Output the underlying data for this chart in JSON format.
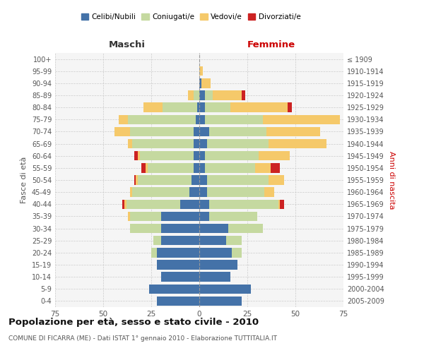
{
  "age_groups": [
    "0-4",
    "5-9",
    "10-14",
    "15-19",
    "20-24",
    "25-29",
    "30-34",
    "35-39",
    "40-44",
    "45-49",
    "50-54",
    "55-59",
    "60-64",
    "65-69",
    "70-74",
    "75-79",
    "80-84",
    "85-89",
    "90-94",
    "95-99",
    "100+"
  ],
  "birth_years": [
    "2005-2009",
    "2000-2004",
    "1995-1999",
    "1990-1994",
    "1985-1989",
    "1980-1984",
    "1975-1979",
    "1970-1974",
    "1965-1969",
    "1960-1964",
    "1955-1959",
    "1950-1954",
    "1945-1949",
    "1940-1944",
    "1935-1939",
    "1930-1934",
    "1925-1929",
    "1920-1924",
    "1915-1919",
    "1910-1914",
    "≤ 1909"
  ],
  "colors": {
    "celibi": "#4472a8",
    "coniugati": "#c5d9a0",
    "vedovi": "#f5c96a",
    "divorziati": "#cc2222"
  },
  "maschi": {
    "celibi": [
      22,
      26,
      20,
      22,
      22,
      20,
      20,
      20,
      10,
      5,
      4,
      3,
      3,
      3,
      3,
      2,
      1,
      0,
      0,
      0,
      0
    ],
    "coniugati": [
      0,
      0,
      0,
      0,
      3,
      4,
      16,
      16,
      28,
      30,
      28,
      24,
      28,
      32,
      33,
      35,
      18,
      3,
      0,
      0,
      0
    ],
    "vedovi": [
      0,
      0,
      0,
      0,
      0,
      0,
      0,
      1,
      1,
      1,
      1,
      1,
      1,
      2,
      8,
      5,
      10,
      3,
      0,
      0,
      0
    ],
    "divorziati": [
      0,
      0,
      0,
      0,
      0,
      0,
      0,
      0,
      1,
      0,
      1,
      2,
      2,
      0,
      0,
      0,
      0,
      0,
      0,
      0,
      0
    ]
  },
  "femmine": {
    "celibi": [
      22,
      27,
      16,
      20,
      17,
      14,
      15,
      5,
      5,
      4,
      4,
      3,
      3,
      4,
      5,
      3,
      3,
      3,
      1,
      0,
      0
    ],
    "coniugati": [
      0,
      0,
      0,
      0,
      5,
      8,
      18,
      25,
      36,
      30,
      32,
      26,
      28,
      32,
      30,
      30,
      13,
      4,
      0,
      0,
      0
    ],
    "vedovi": [
      0,
      0,
      0,
      0,
      0,
      0,
      0,
      0,
      1,
      5,
      8,
      8,
      16,
      30,
      28,
      40,
      30,
      15,
      5,
      2,
      0
    ],
    "divorziati": [
      0,
      0,
      0,
      0,
      0,
      0,
      0,
      0,
      2,
      0,
      0,
      5,
      0,
      0,
      0,
      0,
      2,
      2,
      0,
      0,
      0
    ]
  },
  "title": "Popolazione per età, sesso e stato civile - 2010",
  "subtitle": "COMUNE DI FICARRA (ME) - Dati ISTAT 1° gennaio 2010 - Elaborazione TUTTITALIA.IT",
  "xlabel_left": "Maschi",
  "xlabel_right": "Femmine",
  "ylabel_left": "Fasce di età",
  "ylabel_right": "Anni di nascita",
  "xlim": 75,
  "legend_labels": [
    "Celibi/Nubili",
    "Coniugati/e",
    "Vedovi/e",
    "Divorziati/e"
  ],
  "background_color": "#ffffff",
  "grid_color": "#cccccc"
}
